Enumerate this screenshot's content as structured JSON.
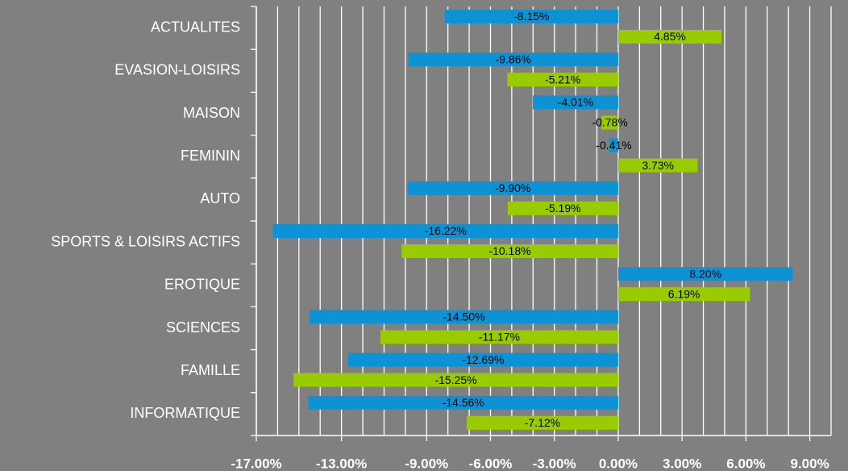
{
  "chart_data": {
    "type": "bar",
    "orientation": "horizontal",
    "categories": [
      "ACTUALITES",
      "EVASION-LOISIRS",
      "MAISON",
      "FEMININ",
      "AUTO",
      "SPORTS & LOISIRS ACTIFS",
      "EROTIQUE",
      "SCIENCES",
      "FAMILLE",
      "INFORMATIQUE"
    ],
    "series": [
      {
        "color": "#0d92d6",
        "values": [
          -8.15,
          -9.86,
          -4.01,
          -0.41,
          -9.9,
          -16.22,
          8.2,
          -14.5,
          -12.69,
          -14.56
        ],
        "value_labels": [
          "-8.15%",
          "-9.86%",
          "-4.01%",
          "-0.41%",
          "-9.90%",
          "-16.22%",
          "8.20%",
          "-14.50%",
          "-12.69%",
          "-14.56%"
        ]
      },
      {
        "color": "#99cc00",
        "values": [
          4.85,
          -5.21,
          -0.78,
          3.73,
          -5.19,
          -10.18,
          6.19,
          -11.17,
          -15.25,
          -7.12
        ],
        "value_labels": [
          "4.85%",
          "-5.21%",
          "-0.78%",
          "3.73%",
          "-5.19%",
          "-10.18%",
          "6.19%",
          "-11.17%",
          "-15.25%",
          "-7.12%"
        ]
      }
    ],
    "xlim": [
      -17,
      10
    ],
    "xticks": [
      {
        "value": -17,
        "label": "-17.00%"
      },
      {
        "value": -13,
        "label": "-13.00%"
      },
      {
        "value": -9,
        "label": "-9.00%"
      },
      {
        "value": -6,
        "label": "-6.00%"
      },
      {
        "value": -3,
        "label": "-3.00%"
      },
      {
        "value": 0,
        "label": "0.00%"
      },
      {
        "value": 3,
        "label": "3.00%"
      },
      {
        "value": 6,
        "label": "6.00%"
      },
      {
        "value": 9,
        "label": "9.00%"
      }
    ],
    "minor_xticks": [
      -16,
      -15,
      -14,
      -12,
      -11,
      -10,
      -8,
      -7,
      -5,
      -4,
      -2,
      -1,
      1,
      2,
      4,
      5,
      7,
      8,
      10
    ],
    "grid": true
  }
}
